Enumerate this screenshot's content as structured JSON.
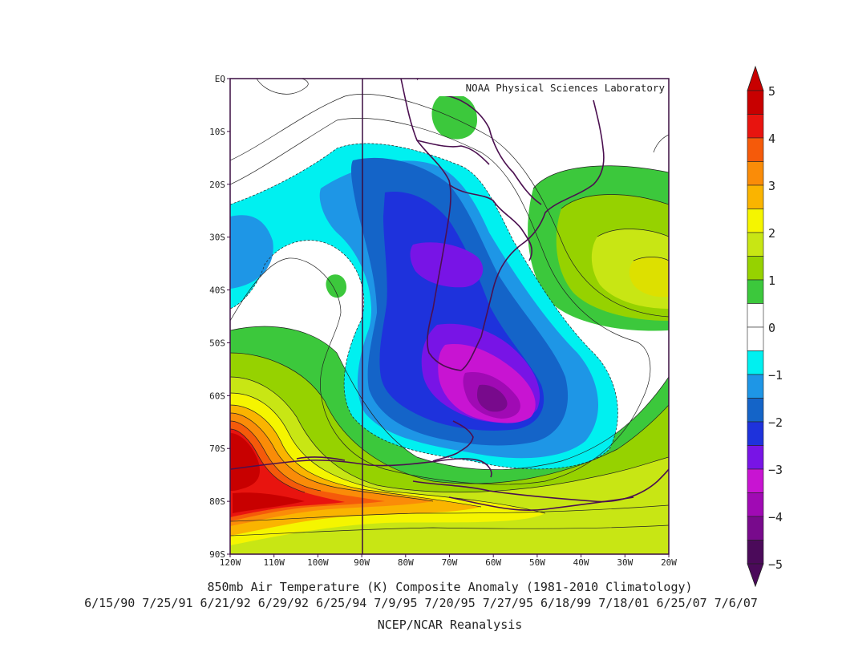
{
  "map": {
    "credit": "NOAA Physical Sciences Laboratory",
    "lat_labels": [
      "EQ",
      "10S",
      "20S",
      "30S",
      "40S",
      "50S",
      "60S",
      "70S",
      "80S",
      "90S"
    ],
    "lon_labels": [
      "120W",
      "110W",
      "100W",
      "90W",
      "80W",
      "70W",
      "60W",
      "50W",
      "40W",
      "30W",
      "20W"
    ],
    "lat_range": [
      0,
      -90
    ],
    "lon_range": [
      -120,
      -20
    ],
    "reference_meridian": "90W"
  },
  "colorbar": {
    "tick_labels": [
      "5",
      "4",
      "3",
      "2",
      "1",
      "0",
      "−1",
      "−2",
      "−3",
      "−4",
      "−5"
    ],
    "colors_top_to_bottom": [
      "#c80000",
      "#e8140f",
      "#f55a0a",
      "#fa8c08",
      "#fab400",
      "#f5f500",
      "#c8e614",
      "#96d200",
      "#3cc83c",
      "#ffffff",
      "#ffffff",
      "#00f0f0",
      "#1e96e6",
      "#1464c8",
      "#1e32dc",
      "#7814e6",
      "#c814d2",
      "#a00ab4",
      "#780a8c",
      "#4b0a5a"
    ]
  },
  "captions": {
    "title": "850mb Air Temperature (K) Composite Anomaly (1981-2010 Climatology)",
    "dates": "6/15/90 7/25/91 6/21/92 6/29/92 6/25/94 7/9/95 7/20/95 7/27/95 6/18/99 7/18/01 6/25/07 7/6/07",
    "source": "NCEP/NCAR Reanalysis"
  }
}
